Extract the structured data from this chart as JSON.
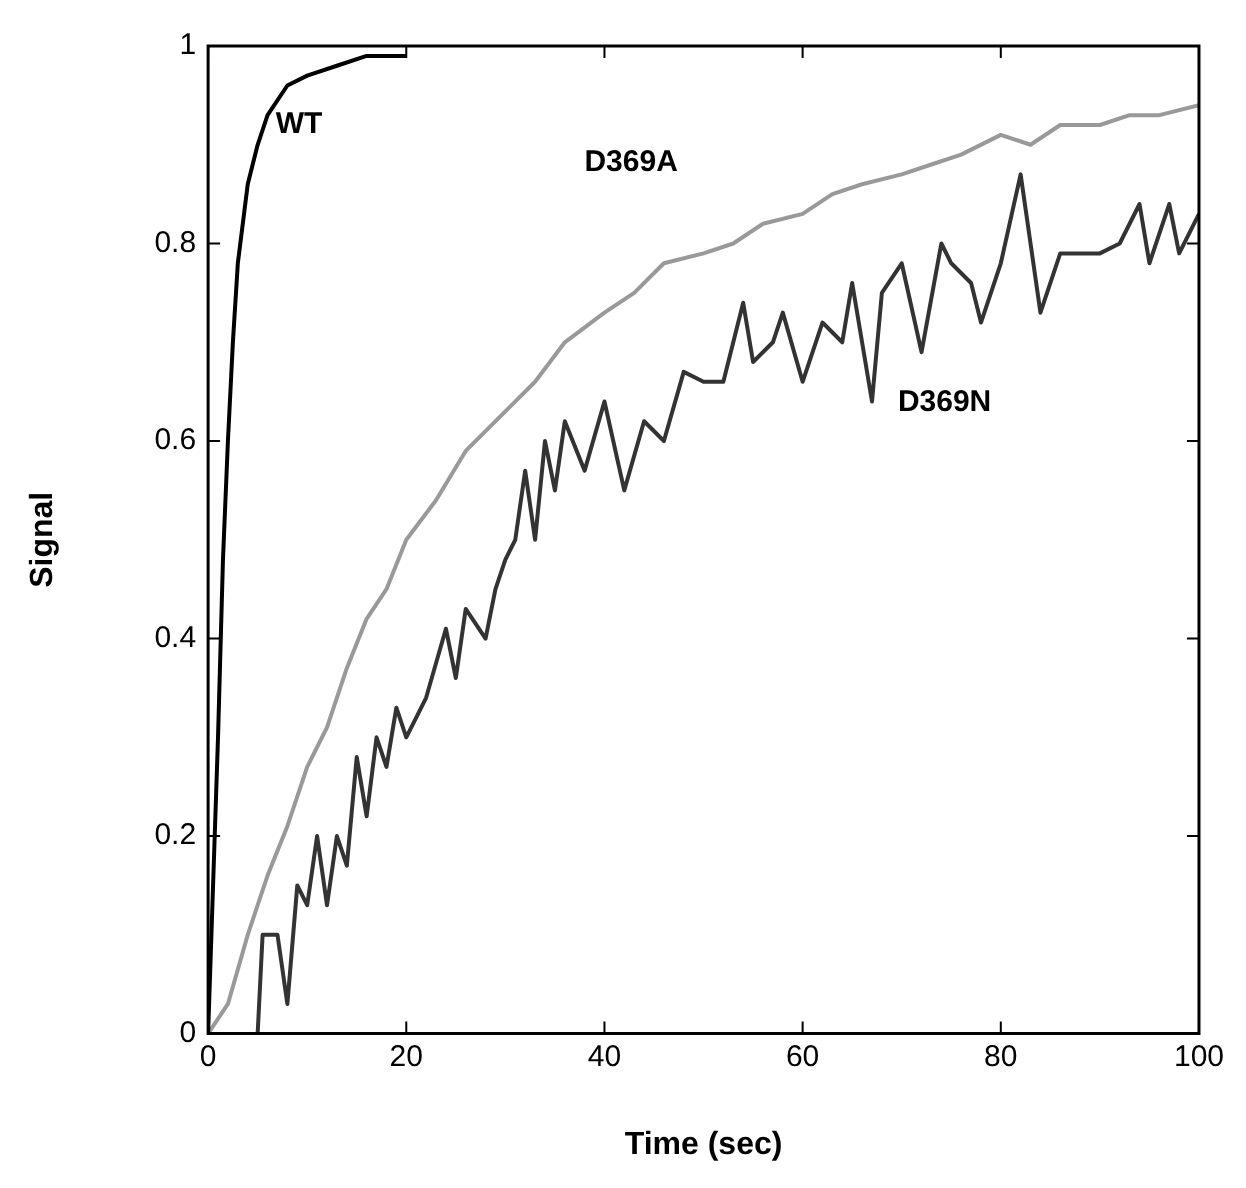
{
  "chart_data": {
    "type": "line",
    "xlabel": "Time (sec)",
    "ylabel": "Signal",
    "xlim": [
      0,
      100
    ],
    "xticks": [
      0,
      20,
      40,
      60,
      80,
      100
    ],
    "ylim": [
      0,
      1
    ],
    "yticks": [
      0,
      0.2,
      0.4,
      0.6,
      0.8,
      1
    ],
    "grid": false,
    "legend": false,
    "marker": "none",
    "line_style": "solid",
    "series": [
      {
        "name": "WT",
        "color": "#000000",
        "x": [
          0,
          0.5,
          1,
          1.5,
          2,
          2.5,
          3,
          4,
          5,
          6,
          8,
          10,
          13,
          16,
          20
        ],
        "values": [
          0,
          0.15,
          0.3,
          0.48,
          0.6,
          0.7,
          0.78,
          0.86,
          0.9,
          0.93,
          0.96,
          0.97,
          0.98,
          0.99,
          0.99
        ]
      },
      {
        "name": "D369A",
        "color": "#999999",
        "x": [
          0,
          2,
          4,
          5,
          6,
          8,
          10,
          12,
          14,
          16,
          18,
          20,
          23,
          26,
          30,
          33,
          36,
          40,
          43,
          46,
          50,
          53,
          56,
          60,
          63,
          66,
          70,
          73,
          76,
          80,
          83,
          86,
          90,
          93,
          96,
          100
        ],
        "values": [
          0,
          0.03,
          0.1,
          0.13,
          0.16,
          0.21,
          0.27,
          0.31,
          0.37,
          0.42,
          0.45,
          0.5,
          0.54,
          0.59,
          0.63,
          0.66,
          0.7,
          0.73,
          0.75,
          0.78,
          0.79,
          0.8,
          0.82,
          0.83,
          0.85,
          0.86,
          0.87,
          0.88,
          0.89,
          0.91,
          0.9,
          0.92,
          0.92,
          0.93,
          0.93,
          0.94
        ]
      },
      {
        "name": "D369N",
        "color": "#333333",
        "x": [
          5,
          5.5,
          7,
          8,
          9,
          10,
          11,
          12,
          13,
          14,
          15,
          16,
          17,
          18,
          19,
          20,
          22,
          24,
          25,
          26,
          28,
          29,
          30,
          31,
          32,
          33,
          34,
          35,
          36,
          38,
          40,
          42,
          44,
          46,
          48,
          50,
          52,
          54,
          55,
          57,
          58,
          60,
          62,
          64,
          65,
          67,
          68,
          70,
          72,
          74,
          75,
          77,
          78,
          80,
          82,
          83,
          84,
          86,
          88,
          90,
          92,
          94,
          95,
          97,
          98,
          100
        ],
        "values": [
          0,
          0.1,
          0.1,
          0.03,
          0.15,
          0.13,
          0.2,
          0.13,
          0.2,
          0.17,
          0.28,
          0.22,
          0.3,
          0.27,
          0.33,
          0.3,
          0.34,
          0.41,
          0.36,
          0.43,
          0.4,
          0.45,
          0.48,
          0.5,
          0.57,
          0.5,
          0.6,
          0.55,
          0.62,
          0.57,
          0.64,
          0.55,
          0.62,
          0.6,
          0.67,
          0.66,
          0.66,
          0.74,
          0.68,
          0.7,
          0.73,
          0.66,
          0.72,
          0.7,
          0.76,
          0.64,
          0.75,
          0.78,
          0.69,
          0.8,
          0.78,
          0.76,
          0.72,
          0.78,
          0.87,
          0.8,
          0.73,
          0.79,
          0.79,
          0.79,
          0.8,
          0.84,
          0.78,
          0.84,
          0.79,
          0.83
        ]
      }
    ]
  }
}
